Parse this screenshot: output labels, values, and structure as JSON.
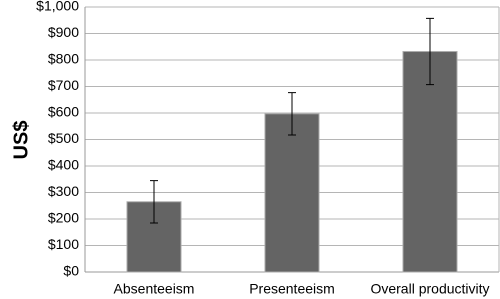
{
  "chart_data": {
    "type": "bar",
    "y_label": "US$",
    "categories": [
      "Absenteeism",
      "Presenteeism",
      "Overall productivity"
    ],
    "values": [
      265,
      597,
      832
    ],
    "errors": [
      80,
      80,
      125
    ],
    "color": "#646464",
    "ylim": [
      0,
      1000
    ],
    "yticks": [
      {
        "value": 0,
        "label": "$0"
      },
      {
        "value": 100,
        "label": "$100"
      },
      {
        "value": 200,
        "label": "$200"
      },
      {
        "value": 300,
        "label": "$300"
      },
      {
        "value": 400,
        "label": "$400"
      },
      {
        "value": 500,
        "label": "$500"
      },
      {
        "value": 600,
        "label": "$600"
      },
      {
        "value": 700,
        "label": "$700"
      },
      {
        "value": 800,
        "label": "$800"
      },
      {
        "value": 900,
        "label": "$900"
      },
      {
        "value": 1000,
        "label": "$1,000"
      }
    ],
    "grid": true
  }
}
